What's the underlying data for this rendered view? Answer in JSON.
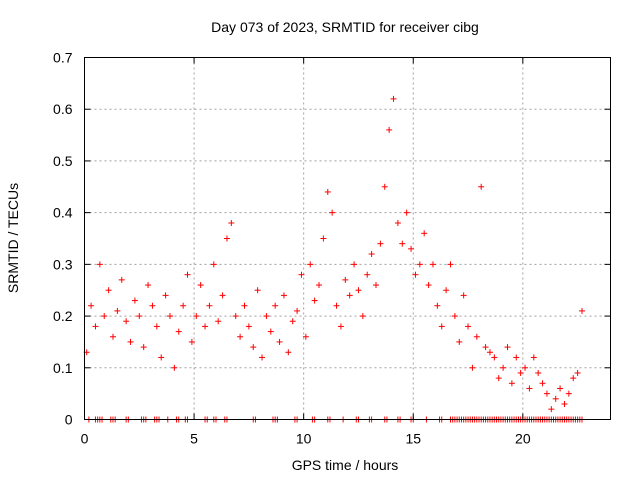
{
  "chart_data": {
    "type": "scatter",
    "title": "Day 073 of 2023, SRMTID for receiver cibg",
    "xlabel": "GPS time / hours",
    "ylabel": "SRMTID / TECUs",
    "xlim": [
      0,
      24
    ],
    "ylim": [
      0,
      0.7
    ],
    "xticks": [
      0,
      5,
      10,
      15,
      20
    ],
    "yticks": [
      0,
      0.1,
      0.2,
      0.3,
      0.4,
      0.5,
      0.6,
      0.7
    ],
    "xtick_labels": [
      "0",
      "5",
      "10",
      "15",
      "20"
    ],
    "ytick_labels": [
      "0",
      "0.1",
      "0.2",
      "0.3",
      "0.4",
      "0.5",
      "0.6",
      "0.7"
    ],
    "grid": true,
    "marker": "+",
    "color": "#ff0000",
    "series": [
      {
        "name": "SRMTID",
        "x": [
          0.1,
          0.3,
          0.5,
          0.7,
          0.9,
          1.1,
          1.3,
          1.5,
          1.7,
          1.9,
          2.1,
          2.3,
          2.5,
          2.7,
          2.9,
          3.1,
          3.3,
          3.5,
          3.7,
          3.9,
          4.1,
          4.3,
          4.5,
          4.7,
          4.9,
          5.1,
          5.3,
          5.5,
          5.7,
          5.9,
          6.1,
          6.3,
          6.5,
          6.7,
          6.9,
          7.1,
          7.3,
          7.5,
          7.7,
          7.9,
          8.1,
          8.3,
          8.5,
          8.7,
          8.9,
          9.1,
          9.3,
          9.5,
          9.7,
          9.9,
          10.1,
          10.3,
          10.5,
          10.7,
          10.9,
          11.1,
          11.3,
          11.5,
          11.7,
          11.9,
          12.1,
          12.3,
          12.5,
          12.7,
          12.9,
          13.1,
          13.3,
          13.5,
          13.7,
          13.9,
          14.1,
          14.3,
          14.5,
          14.7,
          14.9,
          15.1,
          15.3,
          15.5,
          15.7,
          15.9,
          16.1,
          16.3,
          16.5,
          16.7,
          16.9,
          17.1,
          17.3,
          17.5,
          17.7,
          17.9,
          18.1,
          18.3,
          18.5,
          18.7,
          18.9,
          19.1,
          19.3,
          19.5,
          19.7,
          19.9,
          20.1,
          20.3,
          20.5,
          20.7,
          20.9,
          21.1,
          21.3,
          21.5,
          21.7,
          21.9,
          22.1,
          22.3,
          22.5,
          22.7
        ],
        "y": [
          0.13,
          0.22,
          0.18,
          0.3,
          0.2,
          0.25,
          0.16,
          0.21,
          0.27,
          0.19,
          0.15,
          0.23,
          0.2,
          0.14,
          0.26,
          0.22,
          0.18,
          0.12,
          0.24,
          0.2,
          0.1,
          0.17,
          0.22,
          0.28,
          0.15,
          0.2,
          0.26,
          0.18,
          0.22,
          0.3,
          0.19,
          0.24,
          0.35,
          0.38,
          0.2,
          0.16,
          0.22,
          0.18,
          0.14,
          0.25,
          0.12,
          0.2,
          0.17,
          0.22,
          0.15,
          0.24,
          0.13,
          0.19,
          0.21,
          0.28,
          0.16,
          0.3,
          0.23,
          0.26,
          0.35,
          0.44,
          0.4,
          0.22,
          0.18,
          0.27,
          0.24,
          0.3,
          0.25,
          0.2,
          0.28,
          0.32,
          0.26,
          0.34,
          0.45,
          0.56,
          0.62,
          0.38,
          0.34,
          0.4,
          0.33,
          0.28,
          0.3,
          0.36,
          0.26,
          0.3,
          0.22,
          0.18,
          0.25,
          0.3,
          0.2,
          0.15,
          0.24,
          0.18,
          0.1,
          0.16,
          0.45,
          0.14,
          0.13,
          0.12,
          0.08,
          0.1,
          0.14,
          0.07,
          0.12,
          0.09,
          0.1,
          0.06,
          0.12,
          0.09,
          0.07,
          0.05,
          0.02,
          0.04,
          0.06,
          0.03,
          0.05,
          0.08,
          0.09,
          0.21
        ]
      }
    ],
    "zero_points_x": [
      0.2,
      0.5,
      0.6,
      0.7,
      0.8,
      1.2,
      1.3,
      1.4,
      1.9,
      2.0,
      2.6,
      2.7,
      2.8,
      3.2,
      3.3,
      3.4,
      3.8,
      4.2,
      4.3,
      4.6,
      4.7,
      5.5,
      5.6,
      5.9,
      6.0,
      6.4,
      6.5,
      7.7,
      7.8,
      8.6,
      8.7,
      8.8,
      9.6,
      9.7,
      10.4,
      10.5,
      11.1,
      11.2,
      11.8,
      12.4,
      12.5,
      13.0,
      13.1,
      13.7,
      13.8,
      14.3,
      14.4,
      14.9,
      15.0,
      15.6,
      16.2,
      16.3,
      16.7,
      16.8,
      16.9,
      17.0,
      17.1,
      17.2,
      17.3,
      17.4,
      17.5,
      17.6,
      17.7,
      17.8,
      17.9,
      18.0,
      18.1,
      18.2,
      18.3,
      18.4,
      18.5,
      18.6,
      18.7,
      18.8,
      18.9,
      19.0,
      19.1,
      19.2,
      19.3,
      19.4,
      19.5,
      19.6,
      19.7,
      19.8,
      19.9,
      20.0,
      20.1,
      20.2,
      20.3,
      20.4,
      20.5,
      20.6,
      20.7,
      20.8,
      20.9,
      21.0,
      21.1,
      21.2,
      21.3,
      21.4,
      21.5,
      21.6,
      21.7,
      21.8,
      21.9,
      22.0,
      22.1,
      22.2,
      22.3,
      22.4,
      22.5,
      22.6,
      22.7
    ]
  }
}
